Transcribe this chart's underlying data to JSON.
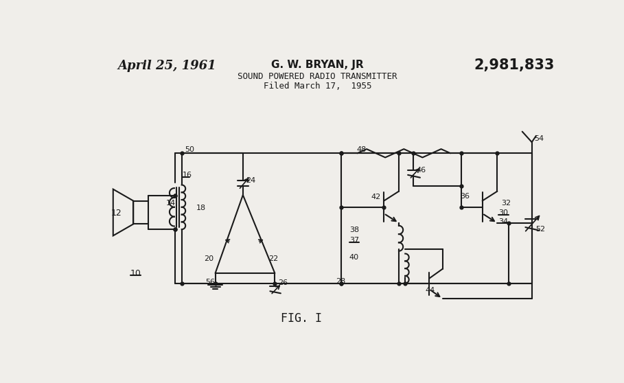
{
  "bg_color": "#f0eeea",
  "line_color": "#1a1a1a",
  "lw": 1.5,
  "header": {
    "date": "April 25, 1961",
    "inventor": "G. W. BRYAN, JR",
    "patent": "2,981,833",
    "description": "SOUND POWERED RADIO TRANSMITTER",
    "filed": "Filed March 17,  1955"
  },
  "fig_label": "FIG. I"
}
